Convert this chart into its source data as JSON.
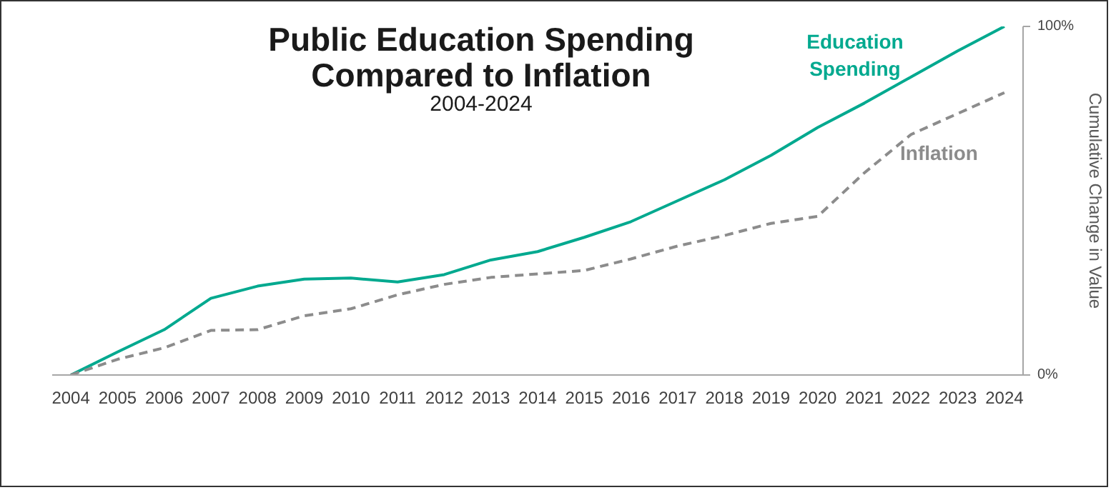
{
  "chart_data": {
    "type": "line",
    "title": "Public Education Spending\nCompared to Inflation",
    "subtitle": "2004-2024",
    "y2label": "Cumulative Change in Value",
    "categories": [
      "2004",
      "2005",
      "2006",
      "2007",
      "2008",
      "2009",
      "2010",
      "2011",
      "2012",
      "2013",
      "2014",
      "2015",
      "2016",
      "2017",
      "2018",
      "2019",
      "2020",
      "2021",
      "2022",
      "2023",
      "2024"
    ],
    "series": [
      {
        "name": "Education Spending",
        "color": "#00a98f",
        "line_style": "solid",
        "axis": "y2",
        "values": [
          0,
          6.6,
          13,
          22,
          25.5,
          27.5,
          27.8,
          26.7,
          28.8,
          33,
          35.4,
          39.5,
          44,
          50,
          56,
          63,
          71,
          78,
          85.5,
          93,
          100
        ]
      },
      {
        "name": "Inflation",
        "color": "#8c8c8c",
        "line_style": "dashed",
        "axis": "y2",
        "values": [
          0,
          4.5,
          7.8,
          12.8,
          13,
          17,
          19,
          23,
          26,
          28,
          29,
          30,
          33.3,
          37,
          40,
          43.5,
          45.5,
          58,
          69,
          75,
          81
        ]
      }
    ],
    "y2lim": [
      0,
      100
    ],
    "y2ticks": [
      {
        "value": 0,
        "label": "0%"
      },
      {
        "value": 100,
        "label": "100%"
      }
    ],
    "grid": false,
    "legend": false
  }
}
